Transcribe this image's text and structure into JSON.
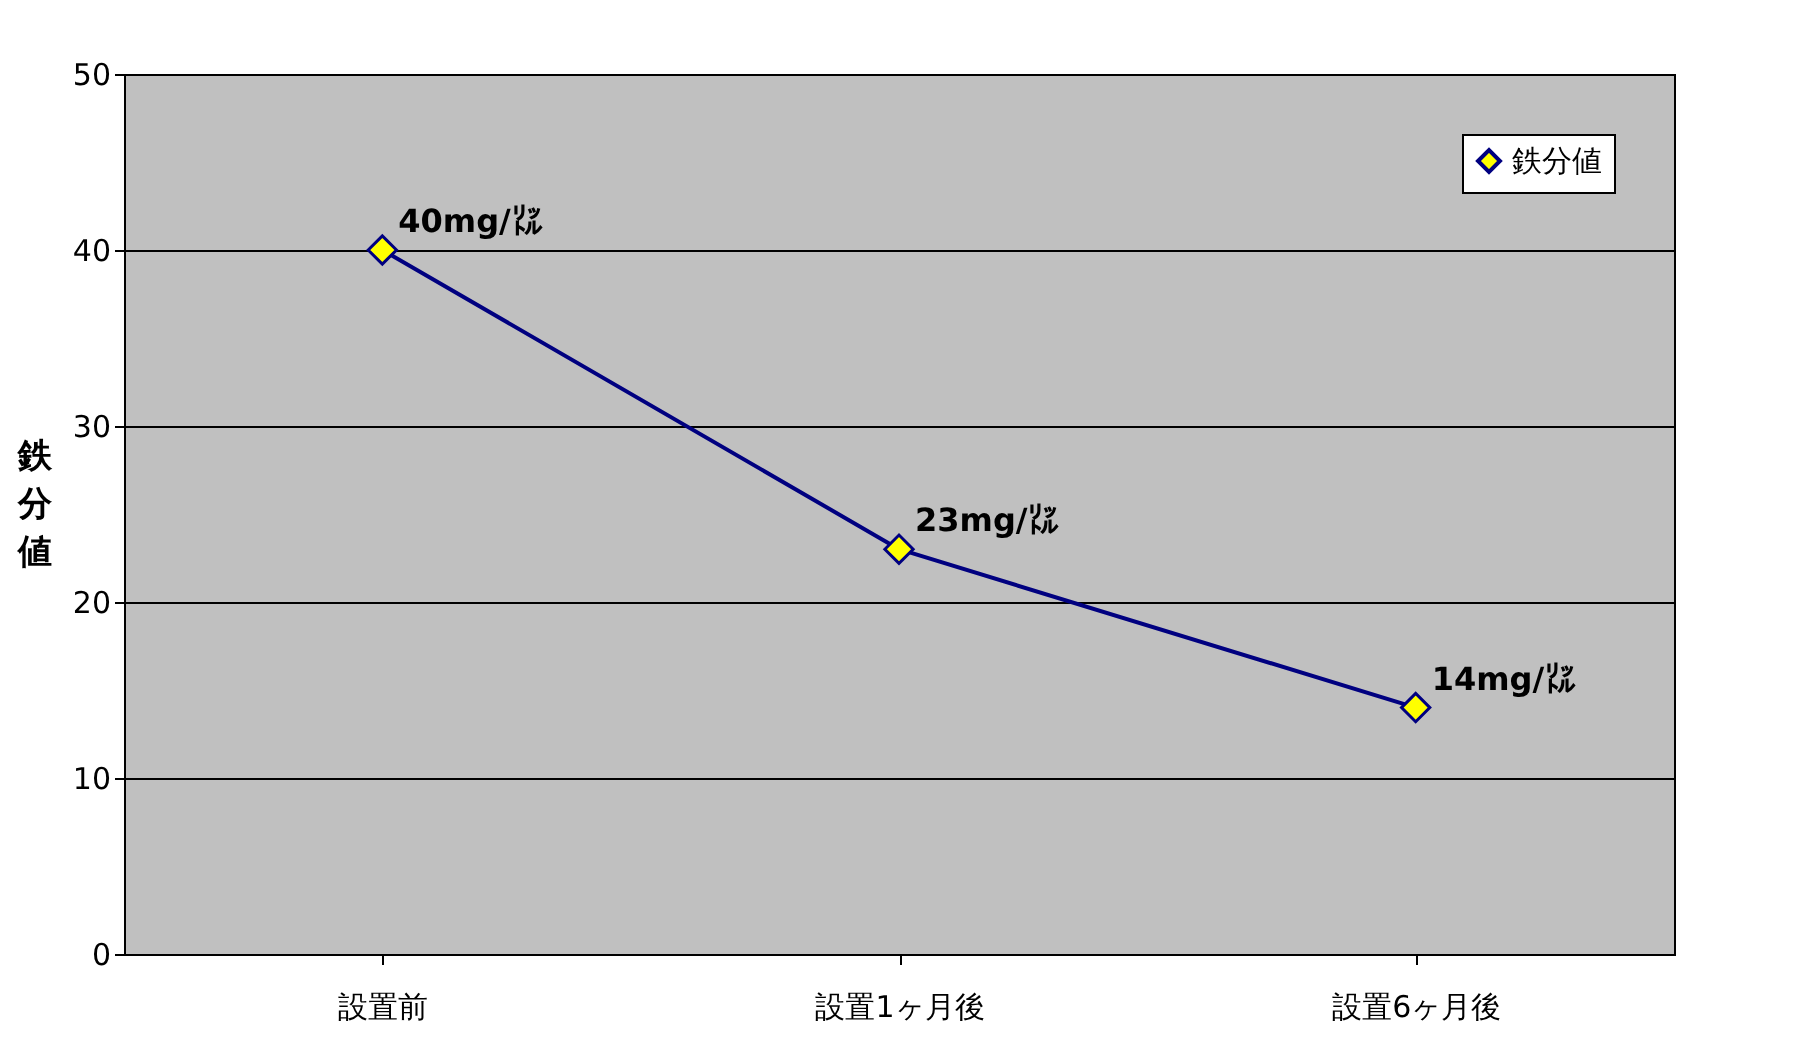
{
  "chart_data": {
    "type": "line",
    "ylabel": "鉄分値",
    "categories": [
      "設置前",
      "設置1ヶ月後",
      "設置6ヶ月後"
    ],
    "series": [
      {
        "name": "鉄分値",
        "color": "#000080",
        "colors": [
          "#ffff00",
          "#ffff00",
          "#ffff00"
        ],
        "values": [
          40,
          23,
          14
        ],
        "value_labels": [
          "40mg/㍑",
          "23mg/㍑",
          "14mg/㍑"
        ]
      }
    ],
    "ylim": [
      0,
      50
    ],
    "yticks": [
      0,
      10,
      20,
      30,
      40,
      50
    ],
    "grid": "y",
    "legend": "top right",
    "marker": "diamond",
    "line_style": "solid"
  }
}
